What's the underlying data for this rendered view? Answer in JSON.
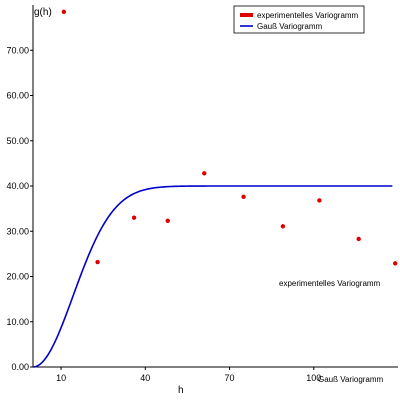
{
  "chart_data": {
    "type": "scatter",
    "xlabel": "h",
    "ylabel": "g(h)",
    "xlim": [
      0,
      130
    ],
    "ylim": [
      0,
      80
    ],
    "x_ticks": [
      10,
      40,
      70,
      100
    ],
    "x_tick_labels": [
      "10",
      "40",
      "70",
      "100"
    ],
    "y_ticks": [
      0,
      10,
      20,
      30,
      40,
      50,
      60,
      70
    ],
    "y_tick_labels": [
      "0.00",
      "10.00",
      "20.00",
      "30.00",
      "40.00",
      "50.00",
      "60.00",
      "70.00"
    ],
    "series": [
      {
        "name": "experimentelles Variogramm",
        "kind": "scatter",
        "color": "#e00000",
        "x": [
          11,
          23,
          36,
          48,
          61,
          75,
          89,
          102,
          116,
          129
        ],
        "y": [
          78.5,
          23.2,
          33.0,
          32.3,
          42.8,
          37.6,
          31.1,
          36.8,
          28.3,
          22.9
        ]
      },
      {
        "name": "Gauß Variogramm",
        "kind": "line",
        "color": "#0000cc",
        "model": "gaussian",
        "sill": 40,
        "range": 35,
        "x_max": 128
      }
    ],
    "legend_position": "top-right",
    "annotations": [
      "experimentelles Variogramm",
      "Gauß Variogramm"
    ]
  }
}
